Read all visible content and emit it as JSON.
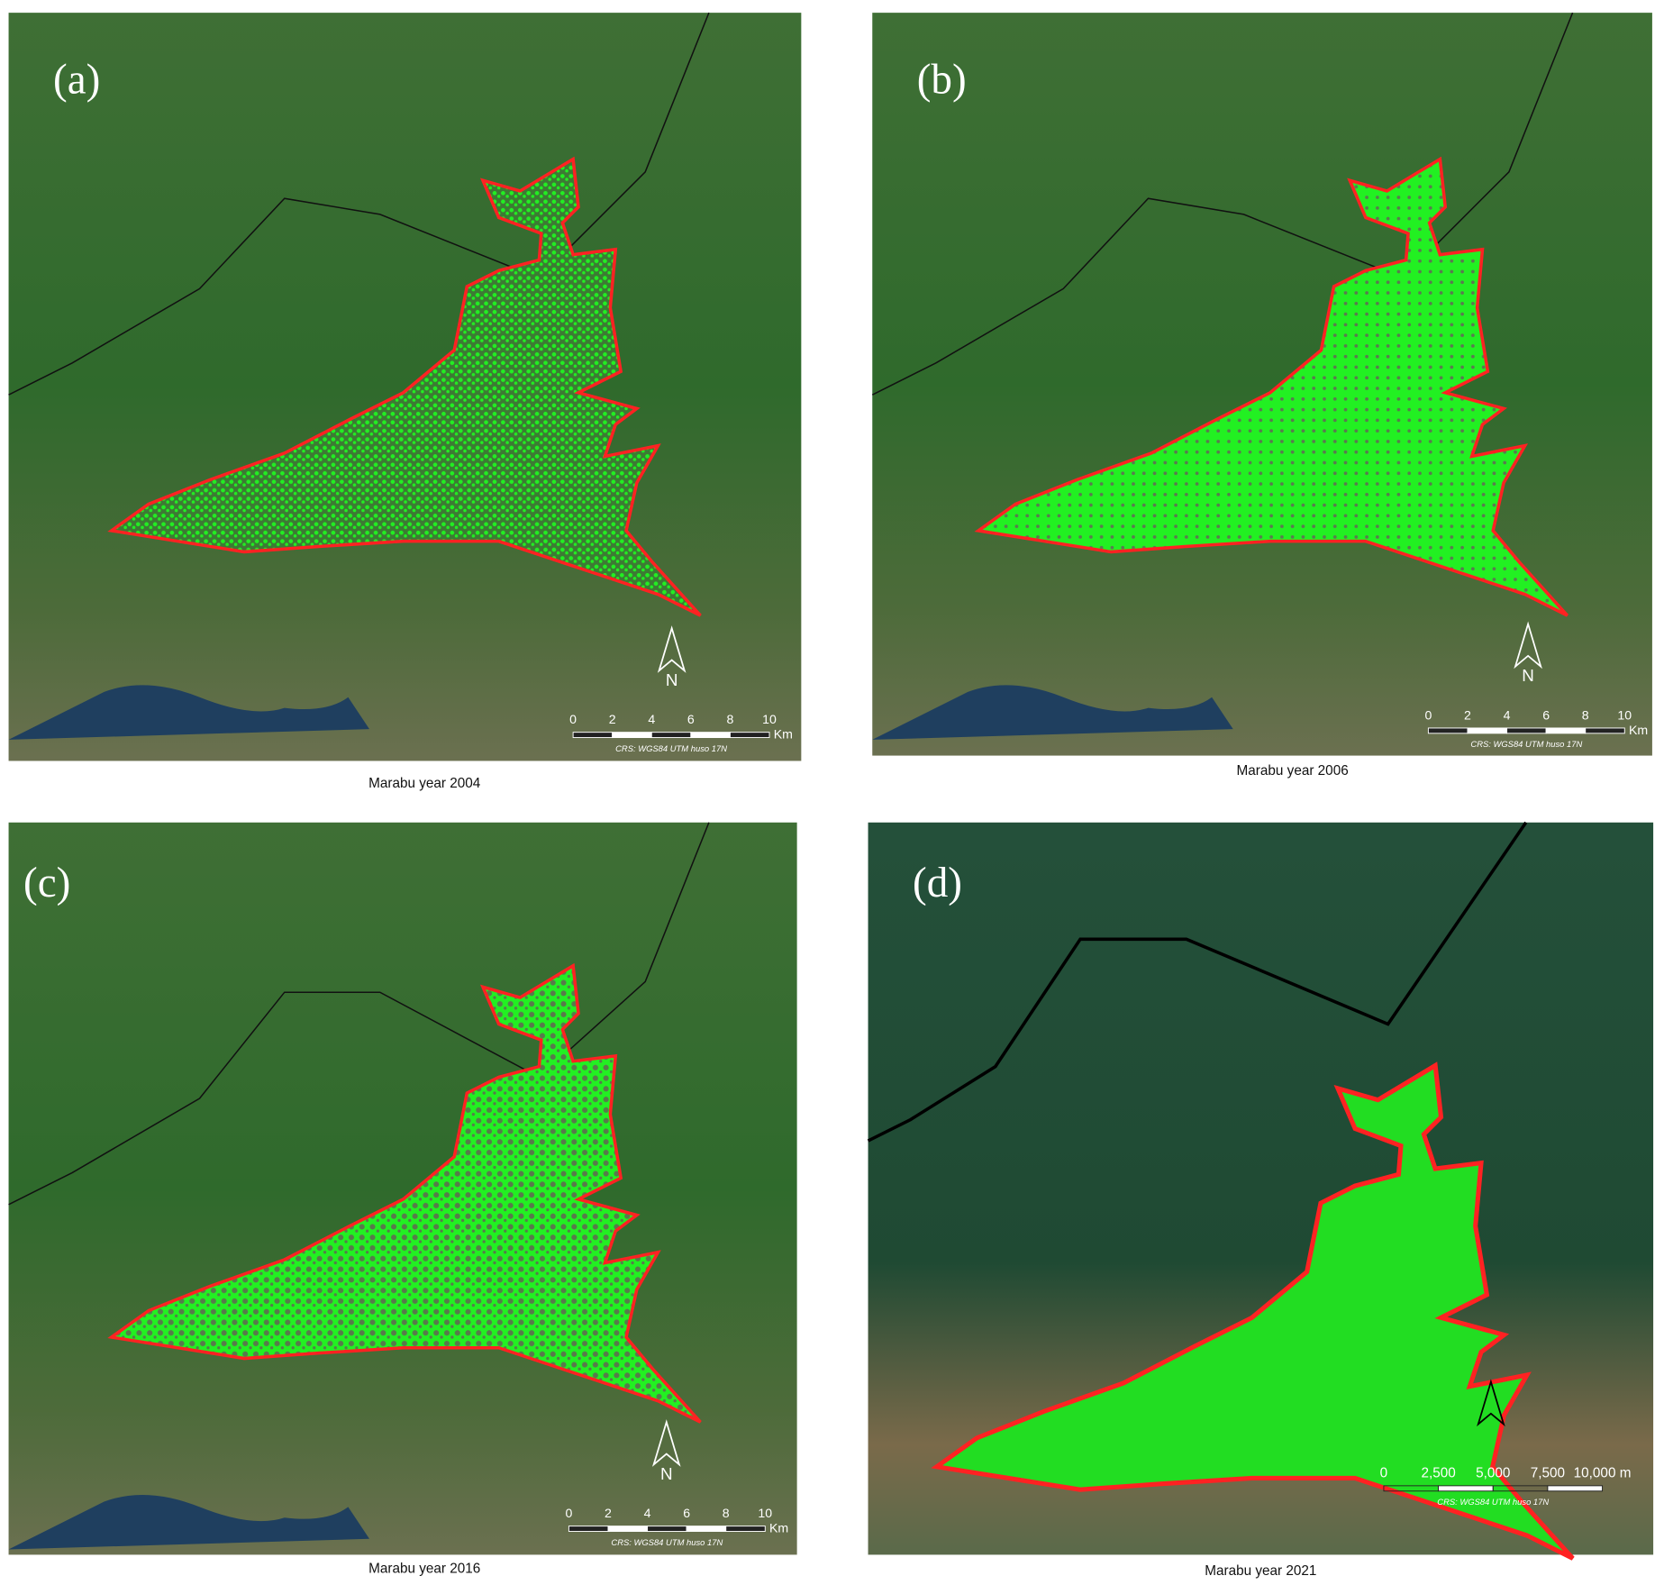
{
  "panels": [
    {
      "label": "(a)",
      "caption": "Marabu year 2004",
      "scale_labels": [
        "0",
        "2",
        "4",
        "6",
        "8",
        "10"
      ],
      "scale_unit": "Km",
      "crs": "CRS: WGS84 UTM huso 17N",
      "north": "N"
    },
    {
      "label": "(b)",
      "caption": "Marabu year 2006",
      "scale_labels": [
        "0",
        "2",
        "4",
        "6",
        "8",
        "10"
      ],
      "scale_unit": "Km",
      "crs": "CRS: WGS84 UTM huso 17N",
      "north": "N"
    },
    {
      "label": "(c)",
      "caption": "Marabu year 2016",
      "scale_labels": [
        "0",
        "2",
        "4",
        "6",
        "8",
        "10"
      ],
      "scale_unit": "Km",
      "crs": "CRS: WGS84 UTM huso 17N",
      "north": "N"
    },
    {
      "label": "(d)",
      "caption": "Marabu year 2021",
      "scale_labels": [
        "0",
        "2,500",
        "5,000",
        "7,500",
        "10,000 m"
      ],
      "crs": "CRS: WGS84 UTM huso 17N"
    }
  ]
}
